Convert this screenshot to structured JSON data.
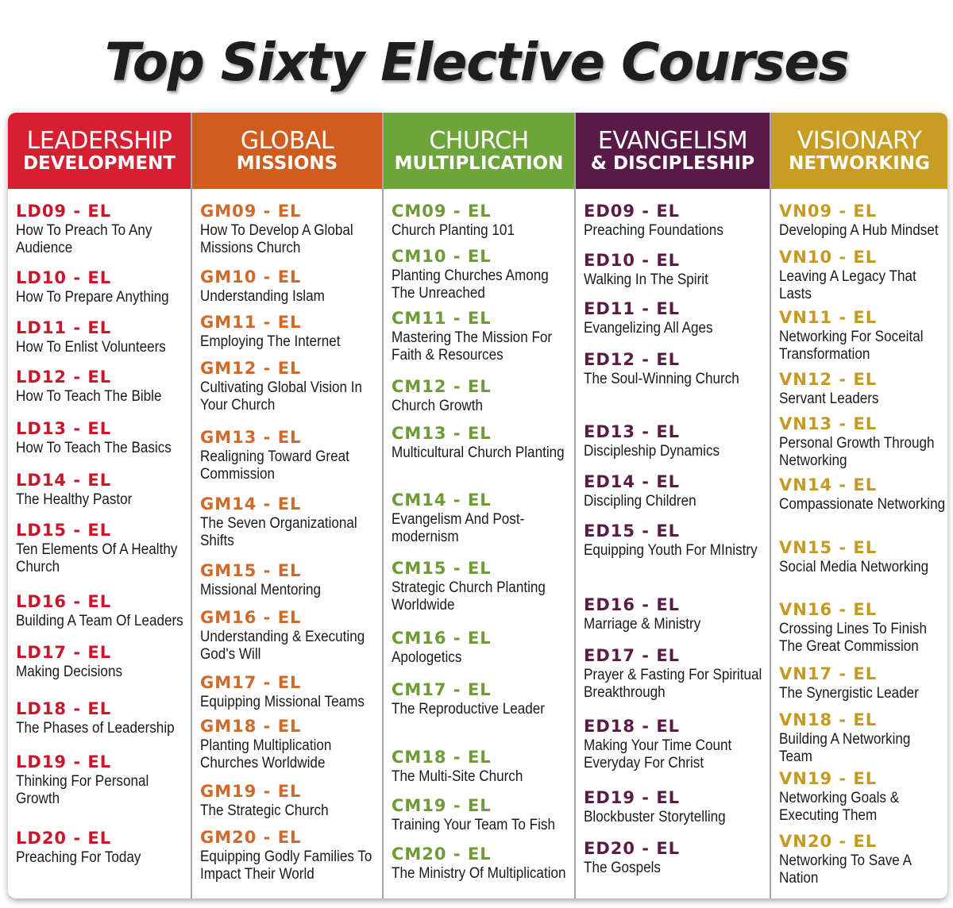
{
  "title": "Top Sixty Elective Courses",
  "colors": {
    "leadership": "#d62031",
    "global": "#d05d1d",
    "church": "#6ea53a",
    "evangelism": "#5a1a47",
    "visionary": "#c89d23"
  },
  "columns": [
    {
      "header_line1": "LEADERSHIP",
      "header_line2": "DEVELOPMENT",
      "courses": [
        {
          "code": "LD09 - EL",
          "name": "How To Preach To Any Audience"
        },
        {
          "code": "LD10 - EL",
          "name": "How To Prepare Anything"
        },
        {
          "code": "LD11 - EL",
          "name": "How To Enlist Volunteers"
        },
        {
          "code": "LD12 - EL",
          "name": "How To Teach The Bible"
        },
        {
          "code": "LD13 - EL",
          "name": "How To Teach The Basics"
        },
        {
          "code": "LD14 - EL",
          "name": "The Healthy Pastor"
        },
        {
          "code": "LD15 - EL",
          "name": "Ten Elements Of A Healthy Church"
        },
        {
          "code": "LD16 - EL",
          "name": "Building A Team Of Leaders"
        },
        {
          "code": "LD17 - EL",
          "name": "Making Decisions"
        },
        {
          "code": "LD18 - EL",
          "name": "The Phases of Leadership"
        },
        {
          "code": "LD19 - EL",
          "name": "Thinking For Personal Growth"
        },
        {
          "code": "LD20 - EL",
          "name": "Preaching For Today"
        }
      ]
    },
    {
      "header_line1": "GLOBAL",
      "header_line2": "MISSIONS",
      "courses": [
        {
          "code": "GM09 - EL",
          "name": "How To Develop A Global Missions Church"
        },
        {
          "code": "GM10 - EL",
          "name": "Understanding Islam"
        },
        {
          "code": "GM11 - EL",
          "name": "Employing The Internet"
        },
        {
          "code": "GM12 - EL",
          "name": "Cultivating Global Vision In Your Church"
        },
        {
          "code": "GM13 - EL",
          "name": "Realigning Toward Great Commission"
        },
        {
          "code": "GM14 - EL",
          "name": "The Seven Organizational Shifts"
        },
        {
          "code": "GM15 - EL",
          "name": "Missional Mentoring"
        },
        {
          "code": "GM16 - EL",
          "name": "Understanding & Executing God's Will"
        },
        {
          "code": "GM17 - EL",
          "name": "Equipping Missional Teams"
        },
        {
          "code": "GM18 - EL",
          "name": "Planting Multiplication Churches Worldwide"
        },
        {
          "code": "GM19 - EL",
          "name": "The Strategic Church"
        },
        {
          "code": "GM20 - EL",
          "name": "Equipping Godly Families To Impact Their World"
        }
      ]
    },
    {
      "header_line1": "CHURCH",
      "header_line2": "MULTIPLICATION",
      "courses": [
        {
          "code": "CM09 - EL",
          "name": "Church Planting 101"
        },
        {
          "code": "CM10 - EL",
          "name": "Planting Churches Among The Unreached"
        },
        {
          "code": "CM11 - EL",
          "name": "Mastering The Mission For Faith & Resources"
        },
        {
          "code": "CM12 - EL",
          "name": "Church Growth"
        },
        {
          "code": "CM13 - EL",
          "name": "Multicultural Church Planting"
        },
        {
          "code": "CM14 - EL",
          "name": "Evangelism And Post-modernism"
        },
        {
          "code": "CM15 - EL",
          "name": "Strategic Church Planting Worldwide"
        },
        {
          "code": "CM16 - EL",
          "name": "Apologetics"
        },
        {
          "code": "CM17 - EL",
          "name": "The Reproductive Leader"
        },
        {
          "code": "CM18 - EL",
          "name": "The Multi-Site Church"
        },
        {
          "code": "CM19 - EL",
          "name": "Training Your Team To Fish"
        },
        {
          "code": "CM20 - EL",
          "name": "The Ministry Of Multiplication"
        }
      ]
    },
    {
      "header_line1": "EVANGELISM",
      "header_line2": "& DISCIPLESHIP",
      "courses": [
        {
          "code": "ED09 - EL",
          "name": "Preaching Foundations"
        },
        {
          "code": "ED10 - EL",
          "name": "Walking In The Spirit"
        },
        {
          "code": "ED11 - EL",
          "name": "Evangelizing All Ages"
        },
        {
          "code": "ED12 - EL",
          "name": "The Soul-Winning Church"
        },
        {
          "code": "ED13 - EL",
          "name": "Discipleship Dynamics"
        },
        {
          "code": "ED14 - EL",
          "name": "Discipling Children"
        },
        {
          "code": "ED15 - EL",
          "name": "Equipping Youth For MInistry"
        },
        {
          "code": "ED16 - EL",
          "name": "Marriage & Ministry"
        },
        {
          "code": "ED17 - EL",
          "name": "Prayer & Fasting For Spiritual Breakthrough"
        },
        {
          "code": "ED18 - EL",
          "name": "Making Your Time Count Everyday For Christ"
        },
        {
          "code": "ED19 - EL",
          "name": "Blockbuster Storytelling"
        },
        {
          "code": "ED20 - EL",
          "name": "The Gospels"
        }
      ]
    },
    {
      "header_line1": "VISIONARY",
      "header_line2": "NETWORKING",
      "courses": [
        {
          "code": "VN09 - EL",
          "name": "Developing A Hub Mindset"
        },
        {
          "code": "VN10 - EL",
          "name": "Leaving A Legacy That Lasts"
        },
        {
          "code": "VN11 - EL",
          "name": "Networking For Soceital Transformation"
        },
        {
          "code": "VN12 - EL",
          "name": "Servant Leaders"
        },
        {
          "code": "VN13 - EL",
          "name": "Personal Growth Through Networking"
        },
        {
          "code": "VN14 - EL",
          "name": "Compassionate Networking"
        },
        {
          "code": "VN15 - EL",
          "name": "Social Media Networking"
        },
        {
          "code": "VN16 - EL",
          "name": "Crossing Lines To Finish The Great Commission"
        },
        {
          "code": "VN17 - EL",
          "name": "The Synergistic Leader"
        },
        {
          "code": "VN18 - EL",
          "name": "Building A Networking Team"
        },
        {
          "code": "VN19 - EL",
          "name": "Networking Goals & Executing Them"
        },
        {
          "code": "VN20 - EL",
          "name": "Networking To Save A Nation"
        }
      ]
    }
  ]
}
